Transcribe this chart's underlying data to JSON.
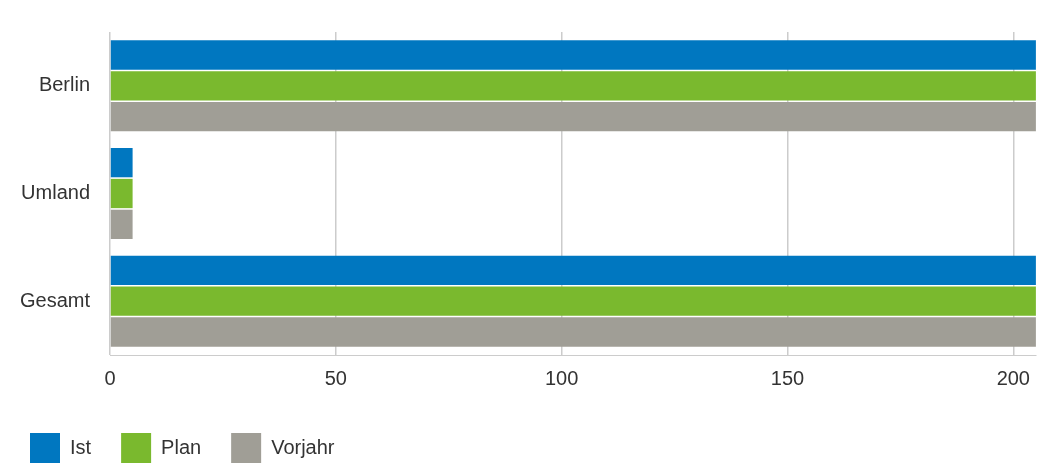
{
  "chart_data": {
    "type": "bar",
    "orientation": "horizontal",
    "categories": [
      "Berlin",
      "Umland",
      "Gesamt"
    ],
    "series": [
      {
        "name": "Ist",
        "color": "#0077c0",
        "values": [
          205,
          5,
          205
        ]
      },
      {
        "name": "Plan",
        "color": "#7ab92e",
        "values": [
          205,
          5,
          205
        ]
      },
      {
        "name": "Vorjahr",
        "color": "#a09e96",
        "values": [
          205,
          5,
          205
        ]
      }
    ],
    "xlim": [
      0,
      205
    ],
    "xticks": [
      0,
      50,
      100,
      150,
      200
    ],
    "grid": "x",
    "legend": "bottom"
  }
}
